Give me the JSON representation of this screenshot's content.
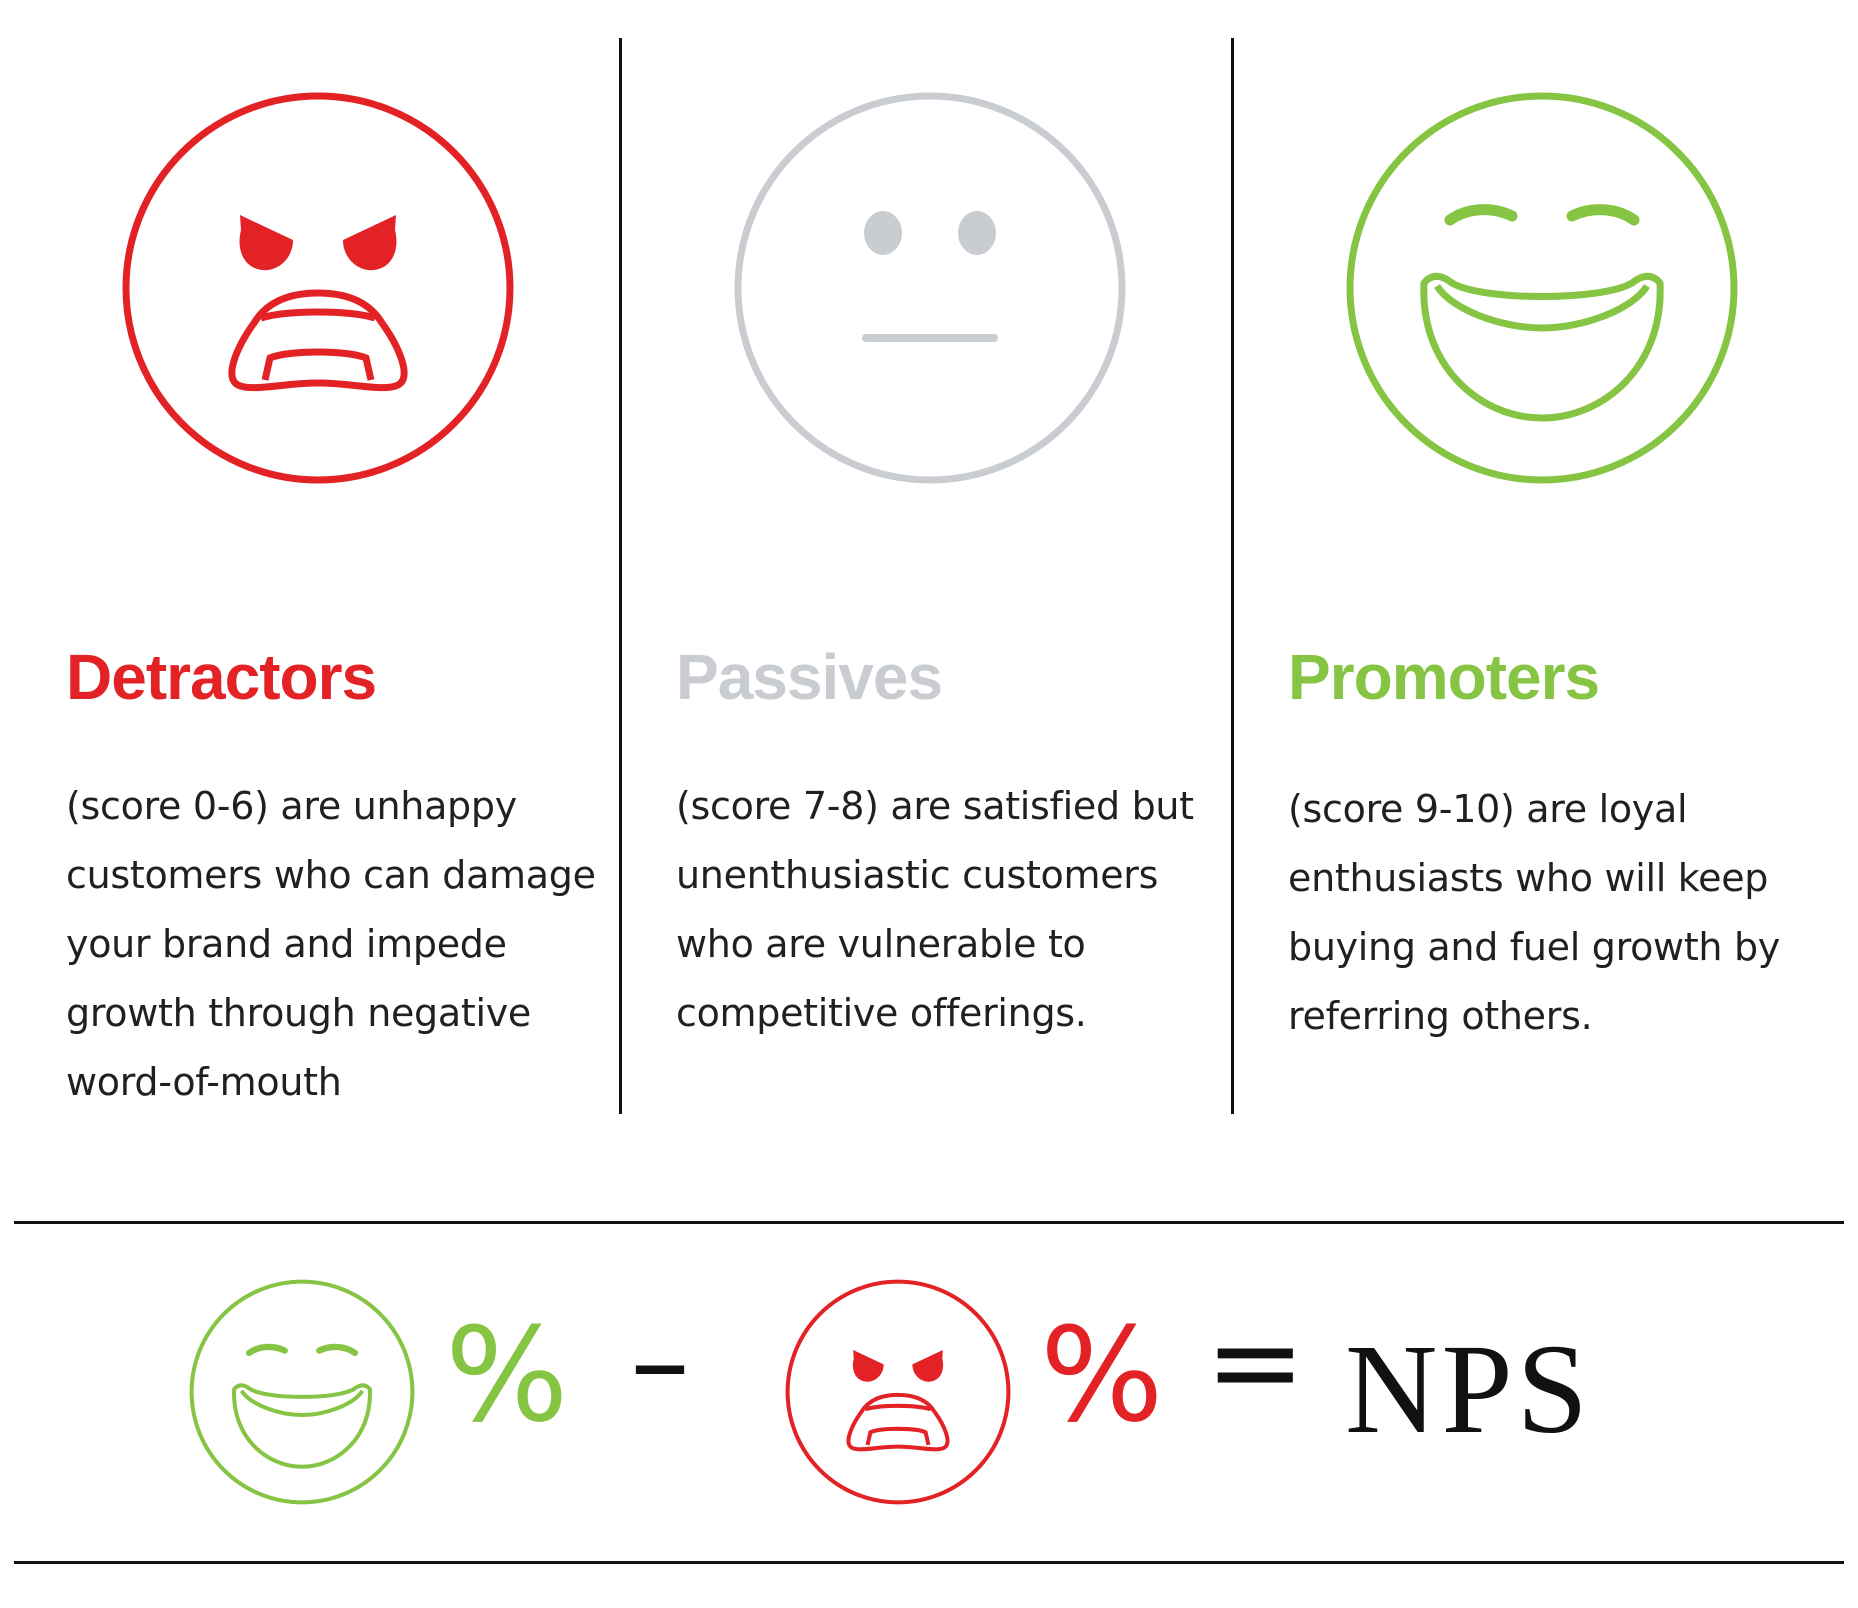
{
  "colors": {
    "detractor": "#e32226",
    "passive": "#c9ccd0",
    "promoter": "#86c444",
    "text": "#231f20",
    "rule": "#111111"
  },
  "categories": [
    {
      "key": "detractors",
      "icon": "angry-face-icon",
      "title": "Detractors",
      "description": "(score 0-6) are unhappy customers who can damage your brand and impede growth through negative word-of-mouth"
    },
    {
      "key": "passives",
      "icon": "neutral-face-icon",
      "title": "Passives",
      "description": "(score 7-8) are satisfied but unenthusiastic customers who are vulnerable to competitive offerings."
    },
    {
      "key": "promoters",
      "icon": "laughing-face-icon",
      "title": "Promoters",
      "description": "(score 9-10) are loyal enthusiasts who will keep buying and fuel growth by referring others."
    }
  ],
  "formula": {
    "promoter_icon": "laughing-face-icon",
    "promoter_percent": "%",
    "minus": "–",
    "detractor_icon": "angry-face-icon",
    "detractor_percent": "%",
    "equals": "=",
    "result": "NPS"
  }
}
